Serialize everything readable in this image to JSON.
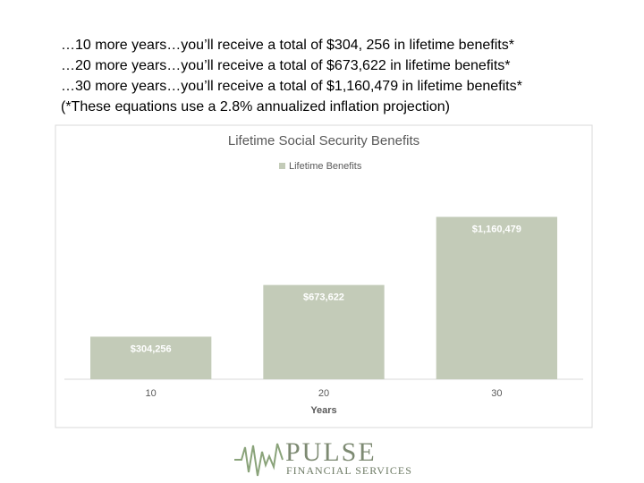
{
  "text_lines": [
    "…10 more years…you’ll receive a total of $304, 256 in lifetime benefits*",
    "…20 more years…you’ll receive a total of $673,622 in lifetime benefits*",
    "…30 more years…you’ll receive a total of $1,160,479 in lifetime benefits*",
    "(*These equations use a 2.8% annualized inflation projection)"
  ],
  "chart_data": {
    "type": "bar",
    "title": "Lifetime Social Security Benefits",
    "x_label": "Years",
    "categories": [
      "10",
      "20",
      "30"
    ],
    "series": [
      {
        "name": "Lifetime Benefits",
        "color": "#c3cbb8",
        "values": [
          304256,
          673622,
          1160479
        ],
        "value_labels": [
          "$304,256",
          "$673,622",
          "$1,160,479"
        ]
      }
    ],
    "ylim": [
      0,
      1400000
    ],
    "legend": "top"
  },
  "logo": {
    "name": "PULSE",
    "tagline": "FINANCIAL SERVICES"
  }
}
